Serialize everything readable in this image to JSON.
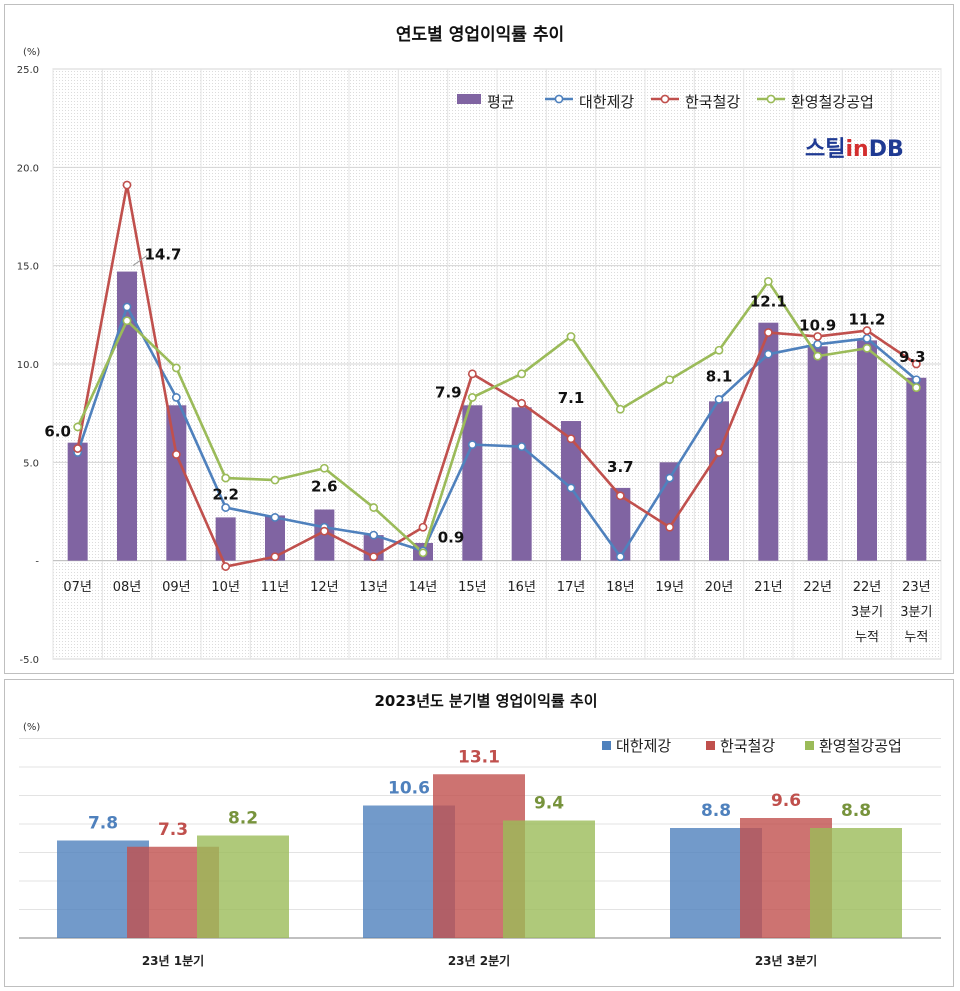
{
  "charts": [
    {
      "type": "bar+line",
      "title": "연도별 영업이익률 추이",
      "y_unit": "(%)",
      "ylim": [
        -5,
        25
      ],
      "y_ticks": [
        "-5.0",
        "-",
        "5.0",
        "10.0",
        "15.0",
        "20.0",
        "25.0"
      ],
      "y_tick_values": [
        -5,
        0,
        5,
        10,
        15,
        20,
        25
      ],
      "grid": true,
      "legend_position": "top-right",
      "logo": {
        "part1": "스틸",
        "part2": "in",
        "part3": "DB"
      },
      "categories": [
        [
          "07년"
        ],
        [
          "08년"
        ],
        [
          "09년"
        ],
        [
          "10년"
        ],
        [
          "11년"
        ],
        [
          "12년"
        ],
        [
          "13년"
        ],
        [
          "14년"
        ],
        [
          "15년"
        ],
        [
          "16년"
        ],
        [
          "17년"
        ],
        [
          "18년"
        ],
        [
          "19년"
        ],
        [
          "20년"
        ],
        [
          "21년"
        ],
        [
          "22년"
        ],
        [
          "22년",
          "3분기",
          "누적"
        ],
        [
          "23년",
          "3분기",
          "누적"
        ]
      ],
      "bar_series": {
        "name": "평균",
        "color": "#8064a2",
        "values": [
          6.0,
          14.7,
          7.9,
          2.2,
          2.3,
          2.6,
          1.3,
          0.9,
          7.9,
          7.8,
          7.1,
          3.7,
          5.0,
          8.1,
          12.1,
          10.9,
          11.2,
          9.3
        ]
      },
      "line_series": [
        {
          "name": "대한제강",
          "color": "#4f81bd",
          "values": [
            5.5,
            12.9,
            8.3,
            2.7,
            2.2,
            1.7,
            1.3,
            0.5,
            5.9,
            5.8,
            3.7,
            0.2,
            4.2,
            8.2,
            10.5,
            11.0,
            11.3,
            9.2
          ]
        },
        {
          "name": "한국철강",
          "color": "#c0504d",
          "values": [
            5.7,
            19.1,
            5.4,
            -0.3,
            0.2,
            1.5,
            0.2,
            1.7,
            9.5,
            8.0,
            6.2,
            3.3,
            1.7,
            5.5,
            11.6,
            11.4,
            11.7,
            10.0
          ]
        },
        {
          "name": "환영철강공업",
          "color": "#9bbb59",
          "values": [
            6.8,
            12.2,
            9.8,
            4.2,
            4.1,
            4.7,
            2.7,
            0.4,
            8.3,
            9.5,
            11.4,
            7.7,
            9.2,
            10.7,
            14.2,
            10.4,
            10.8,
            8.8
          ]
        }
      ],
      "data_labels": [
        {
          "index": 0,
          "text": "6.0"
        },
        {
          "index": 1,
          "text": "14.7"
        },
        {
          "index": 3,
          "text": "2.2"
        },
        {
          "index": 5,
          "text": "2.6"
        },
        {
          "index": 7,
          "text": "0.9"
        },
        {
          "index": 8,
          "text": "7.9"
        },
        {
          "index": 10,
          "text": "7.1"
        },
        {
          "index": 11,
          "text": "3.7"
        },
        {
          "index": 13,
          "text": "8.1"
        },
        {
          "index": 14,
          "text": "12.1"
        },
        {
          "index": 15,
          "text": "10.9"
        },
        {
          "index": 16,
          "text": "11.2"
        },
        {
          "index": 17,
          "text": "9.3"
        }
      ]
    },
    {
      "type": "bar",
      "title": "2023년도 분기별 영업이익률 추이",
      "y_unit": "(%)",
      "ylim": [
        0,
        16
      ],
      "grid": true,
      "legend_position": "top-right",
      "categories": [
        "23년 1분기",
        "23년 2분기",
        "23년 3분기"
      ],
      "series": [
        {
          "name": "대한제강",
          "color": "#4f81bd",
          "label_color": "#4f81bd",
          "values": [
            7.8,
            10.6,
            8.8
          ]
        },
        {
          "name": "한국철강",
          "color": "#c0504d",
          "label_color": "#c0504d",
          "values": [
            7.3,
            13.1,
            9.6
          ]
        },
        {
          "name": "환영철강공업",
          "color": "#9bbb59",
          "label_color": "#77933c",
          "values": [
            8.2,
            9.4,
            8.8
          ]
        }
      ]
    }
  ]
}
